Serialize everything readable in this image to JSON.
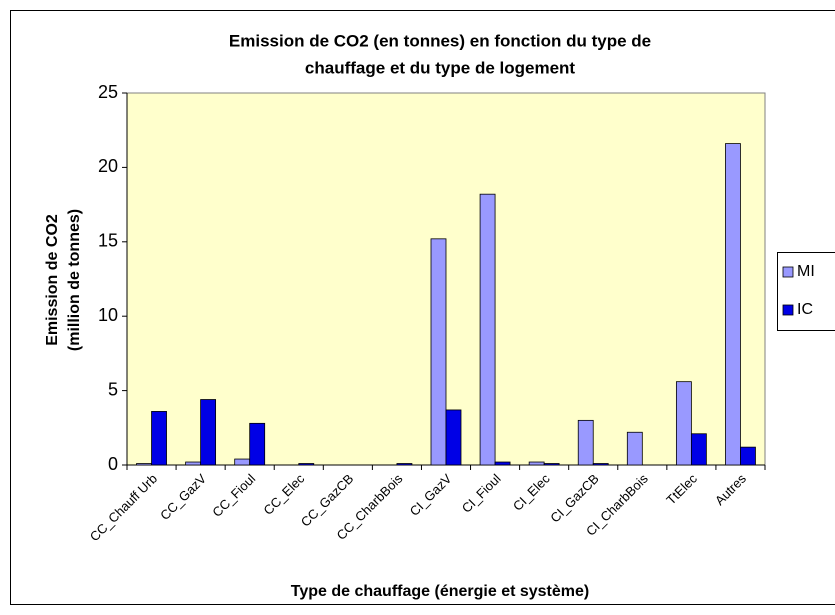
{
  "chart_data": {
    "type": "bar",
    "title": [
      "Emission de CO2 (en tonnes) en fonction du type de",
      "chauffage et du type de logement"
    ],
    "y_label": [
      "Emission de CO2",
      "(million de tonnes)"
    ],
    "x_label": "Type de chauffage (énergie et système)",
    "categories": [
      "CC_Chauff Urb",
      "CC_GazV",
      "CC_Fioul",
      "CC_Elec",
      "CC_GazCB",
      "CC_CharbBois",
      "CI_GazV",
      "CI_Fioul",
      "CI_Elec",
      "CI_GazCB",
      "CI_CharbBois",
      "TtElec",
      "Autres"
    ],
    "series": [
      {
        "name": "MI",
        "color": "#9999ff",
        "values": [
          0.1,
          0.2,
          0.4,
          0,
          0,
          0,
          15.2,
          18.2,
          0.2,
          3.0,
          2.2,
          5.6,
          21.6
        ]
      },
      {
        "name": "IC",
        "color": "#0000e6",
        "values": [
          3.6,
          4.4,
          2.8,
          0.1,
          0,
          0.1,
          3.7,
          0.2,
          0.1,
          0.1,
          0,
          2.1,
          1.2
        ]
      }
    ],
    "ylim": [
      0,
      25
    ],
    "yticks": [
      0,
      5,
      10,
      15,
      20,
      25
    ],
    "plot_background": "#ffffcc",
    "legend": "right"
  }
}
